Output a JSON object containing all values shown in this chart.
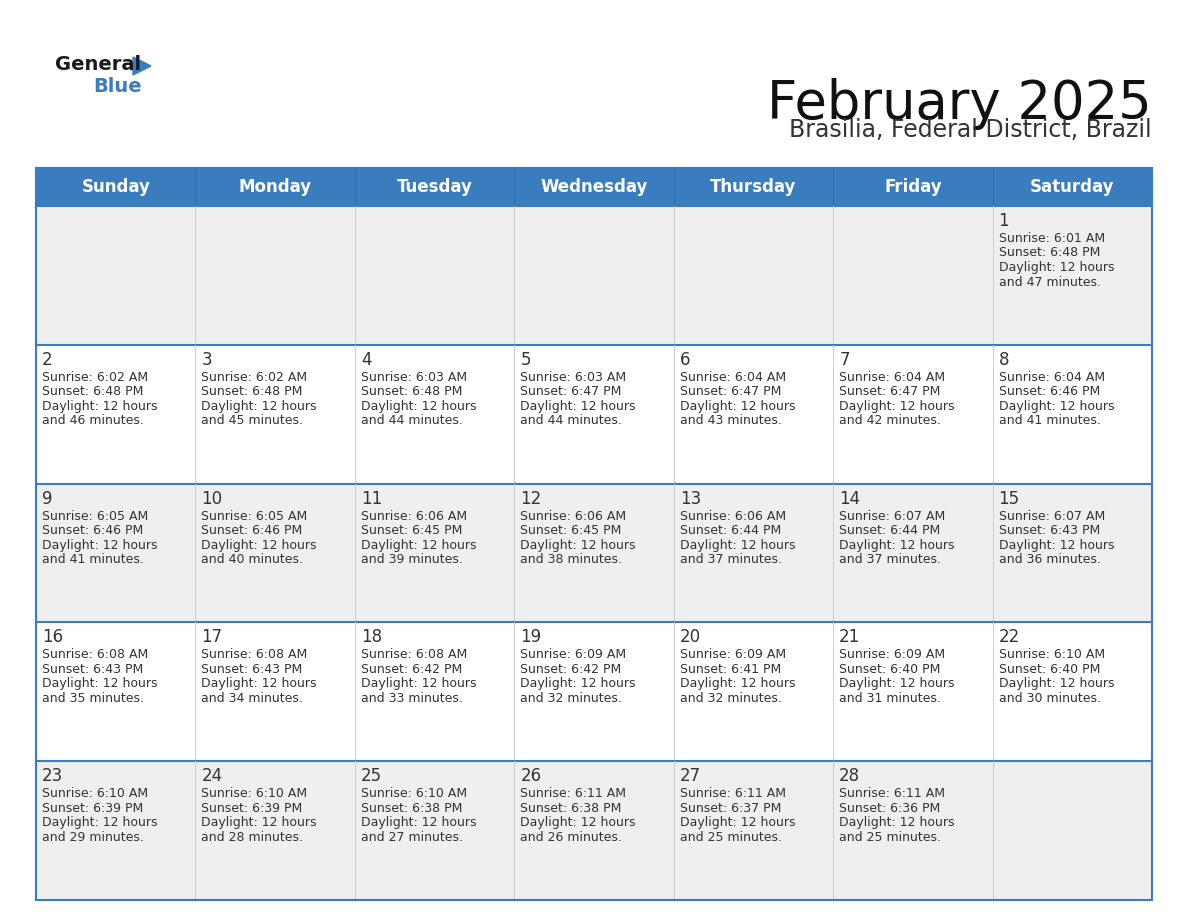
{
  "title": "February 2025",
  "subtitle": "Brasilia, Federal District, Brazil",
  "header_color": "#3a7dbf",
  "header_text_color": "#ffffff",
  "cell_bg_even": "#efefef",
  "cell_bg_odd": "#ffffff",
  "cell_border_color": "#3a7dbf",
  "day_number_color": "#333333",
  "text_color": "#333333",
  "days_of_week": [
    "Sunday",
    "Monday",
    "Tuesday",
    "Wednesday",
    "Thursday",
    "Friday",
    "Saturday"
  ],
  "calendar_data": [
    [
      null,
      null,
      null,
      null,
      null,
      null,
      {
        "day": 1,
        "sunrise": "6:01 AM",
        "sunset": "6:48 PM",
        "daylight_hours": 12,
        "daylight_minutes": 47
      }
    ],
    [
      {
        "day": 2,
        "sunrise": "6:02 AM",
        "sunset": "6:48 PM",
        "daylight_hours": 12,
        "daylight_minutes": 46
      },
      {
        "day": 3,
        "sunrise": "6:02 AM",
        "sunset": "6:48 PM",
        "daylight_hours": 12,
        "daylight_minutes": 45
      },
      {
        "day": 4,
        "sunrise": "6:03 AM",
        "sunset": "6:48 PM",
        "daylight_hours": 12,
        "daylight_minutes": 44
      },
      {
        "day": 5,
        "sunrise": "6:03 AM",
        "sunset": "6:47 PM",
        "daylight_hours": 12,
        "daylight_minutes": 44
      },
      {
        "day": 6,
        "sunrise": "6:04 AM",
        "sunset": "6:47 PM",
        "daylight_hours": 12,
        "daylight_minutes": 43
      },
      {
        "day": 7,
        "sunrise": "6:04 AM",
        "sunset": "6:47 PM",
        "daylight_hours": 12,
        "daylight_minutes": 42
      },
      {
        "day": 8,
        "sunrise": "6:04 AM",
        "sunset": "6:46 PM",
        "daylight_hours": 12,
        "daylight_minutes": 41
      }
    ],
    [
      {
        "day": 9,
        "sunrise": "6:05 AM",
        "sunset": "6:46 PM",
        "daylight_hours": 12,
        "daylight_minutes": 41
      },
      {
        "day": 10,
        "sunrise": "6:05 AM",
        "sunset": "6:46 PM",
        "daylight_hours": 12,
        "daylight_minutes": 40
      },
      {
        "day": 11,
        "sunrise": "6:06 AM",
        "sunset": "6:45 PM",
        "daylight_hours": 12,
        "daylight_minutes": 39
      },
      {
        "day": 12,
        "sunrise": "6:06 AM",
        "sunset": "6:45 PM",
        "daylight_hours": 12,
        "daylight_minutes": 38
      },
      {
        "day": 13,
        "sunrise": "6:06 AM",
        "sunset": "6:44 PM",
        "daylight_hours": 12,
        "daylight_minutes": 37
      },
      {
        "day": 14,
        "sunrise": "6:07 AM",
        "sunset": "6:44 PM",
        "daylight_hours": 12,
        "daylight_minutes": 37
      },
      {
        "day": 15,
        "sunrise": "6:07 AM",
        "sunset": "6:43 PM",
        "daylight_hours": 12,
        "daylight_minutes": 36
      }
    ],
    [
      {
        "day": 16,
        "sunrise": "6:08 AM",
        "sunset": "6:43 PM",
        "daylight_hours": 12,
        "daylight_minutes": 35
      },
      {
        "day": 17,
        "sunrise": "6:08 AM",
        "sunset": "6:43 PM",
        "daylight_hours": 12,
        "daylight_minutes": 34
      },
      {
        "day": 18,
        "sunrise": "6:08 AM",
        "sunset": "6:42 PM",
        "daylight_hours": 12,
        "daylight_minutes": 33
      },
      {
        "day": 19,
        "sunrise": "6:09 AM",
        "sunset": "6:42 PM",
        "daylight_hours": 12,
        "daylight_minutes": 32
      },
      {
        "day": 20,
        "sunrise": "6:09 AM",
        "sunset": "6:41 PM",
        "daylight_hours": 12,
        "daylight_minutes": 32
      },
      {
        "day": 21,
        "sunrise": "6:09 AM",
        "sunset": "6:40 PM",
        "daylight_hours": 12,
        "daylight_minutes": 31
      },
      {
        "day": 22,
        "sunrise": "6:10 AM",
        "sunset": "6:40 PM",
        "daylight_hours": 12,
        "daylight_minutes": 30
      }
    ],
    [
      {
        "day": 23,
        "sunrise": "6:10 AM",
        "sunset": "6:39 PM",
        "daylight_hours": 12,
        "daylight_minutes": 29
      },
      {
        "day": 24,
        "sunrise": "6:10 AM",
        "sunset": "6:39 PM",
        "daylight_hours": 12,
        "daylight_minutes": 28
      },
      {
        "day": 25,
        "sunrise": "6:10 AM",
        "sunset": "6:38 PM",
        "daylight_hours": 12,
        "daylight_minutes": 27
      },
      {
        "day": 26,
        "sunrise": "6:11 AM",
        "sunset": "6:38 PM",
        "daylight_hours": 12,
        "daylight_minutes": 26
      },
      {
        "day": 27,
        "sunrise": "6:11 AM",
        "sunset": "6:37 PM",
        "daylight_hours": 12,
        "daylight_minutes": 25
      },
      {
        "day": 28,
        "sunrise": "6:11 AM",
        "sunset": "6:36 PM",
        "daylight_hours": 12,
        "daylight_minutes": 25
      },
      null
    ]
  ],
  "logo_text_general": "General",
  "logo_text_blue": "Blue",
  "logo_triangle_color": "#3a7dbf",
  "title_fontsize": 38,
  "subtitle_fontsize": 17,
  "header_fontsize": 12,
  "day_num_fontsize": 12,
  "cell_text_fontsize": 9
}
